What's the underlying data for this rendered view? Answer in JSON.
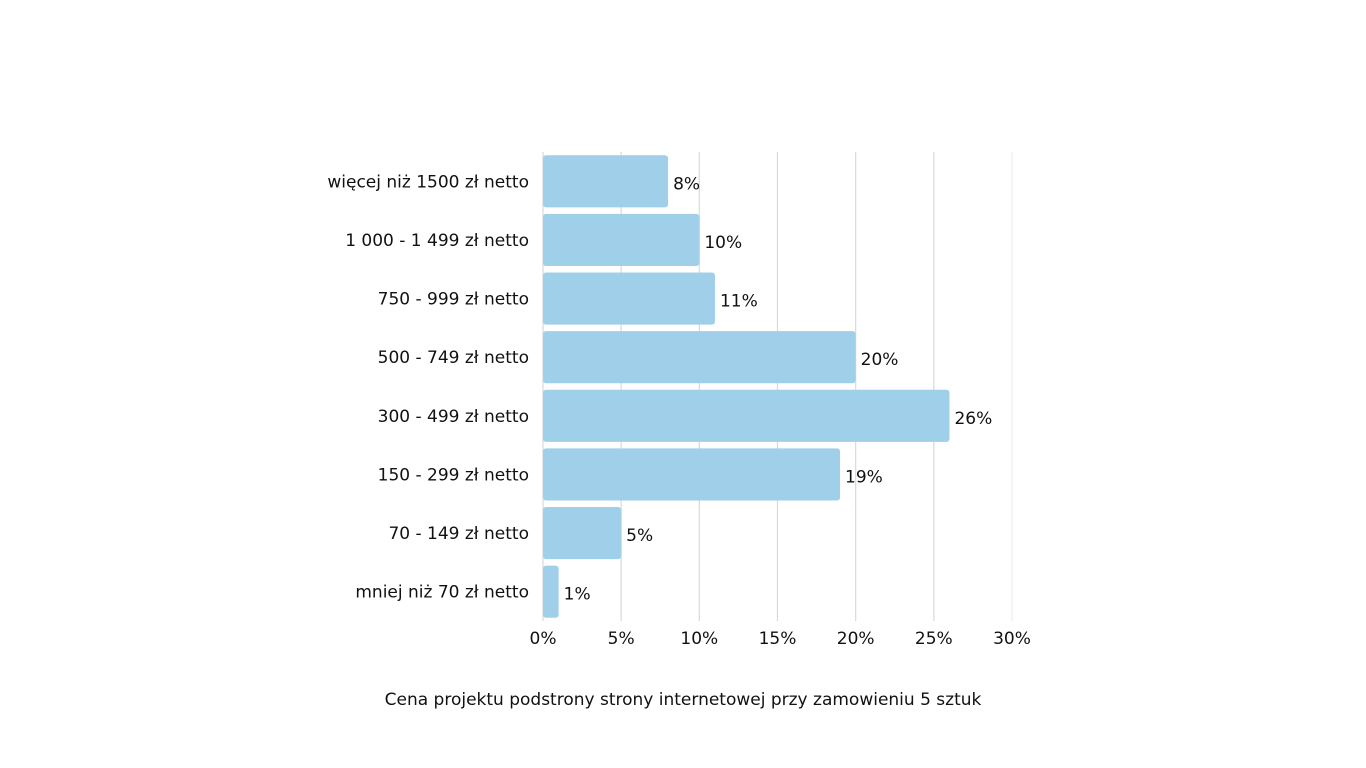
{
  "chart_data": {
    "type": "bar",
    "orientation": "horizontal",
    "caption": "Cena projektu podstrony strony internetowej przy zamowieniu 5 sztuk",
    "categories": [
      "więcej niż 1500 zł netto",
      "1 000 - 1 499 zł netto",
      "750 - 999 zł netto",
      "500 - 749 zł netto",
      "300 - 499 zł netto",
      "150 - 299 zł netto",
      "70 - 149 zł netto",
      "mniej niż 70 zł netto"
    ],
    "values": [
      8,
      10,
      11,
      20,
      26,
      19,
      5,
      1
    ],
    "value_labels": [
      "8%",
      "10%",
      "11%",
      "20%",
      "26%",
      "19%",
      "5%",
      "1%"
    ],
    "xlim": [
      0,
      30
    ],
    "xticks": [
      0,
      5,
      10,
      15,
      20,
      25,
      30
    ],
    "xtick_labels": [
      "0%",
      "5%",
      "10%",
      "15%",
      "20%",
      "25%",
      "30%"
    ],
    "grid": "vertical",
    "legend": "none",
    "bar_color": "#a0cfea",
    "grid_color": "#d9d9d9"
  }
}
